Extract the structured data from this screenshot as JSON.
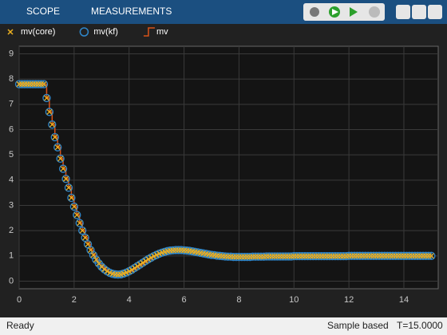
{
  "toolbar": {
    "tabs": [
      "SCOPE",
      "MEASUREMENTS"
    ]
  },
  "status": {
    "state": "Ready",
    "mode": "Sample based",
    "time": "T=15.0000"
  },
  "chart_data": {
    "type": "line",
    "x": [
      0,
      0.1,
      0.2,
      0.3,
      0.4,
      0.5,
      0.6,
      0.7,
      0.8,
      0.9,
      1,
      1.1,
      1.2,
      1.3,
      1.4,
      1.5,
      1.6,
      1.7,
      1.8,
      1.9,
      2,
      2.1,
      2.2,
      2.3,
      2.4,
      2.5,
      2.6,
      2.7,
      2.8,
      2.9,
      3,
      3.1,
      3.2,
      3.3,
      3.4,
      3.5,
      3.6,
      3.7,
      3.8,
      3.9,
      4,
      4.1,
      4.2,
      4.3,
      4.4,
      4.5,
      4.6,
      4.7,
      4.8,
      4.9,
      5,
      5.1,
      5.2,
      5.3,
      5.4,
      5.5,
      5.6,
      5.7,
      5.8,
      5.9,
      6,
      6.1,
      6.2,
      6.3,
      6.4,
      6.5,
      6.6,
      6.7,
      6.8,
      6.9,
      7,
      7.1,
      7.2,
      7.3,
      7.4,
      7.5,
      7.6,
      7.7,
      7.8,
      7.9,
      8,
      8.1,
      8.2,
      8.3,
      8.4,
      8.5,
      8.6,
      8.7,
      8.8,
      8.9,
      9,
      9.1,
      9.2,
      9.3,
      9.4,
      9.5,
      9.6,
      9.7,
      9.8,
      9.9,
      10,
      10.1,
      10.2,
      10.3,
      10.4,
      10.5,
      10.6,
      10.7,
      10.8,
      10.9,
      11,
      11.1,
      11.2,
      11.3,
      11.4,
      11.5,
      11.6,
      11.7,
      11.8,
      11.9,
      12,
      12.1,
      12.2,
      12.3,
      12.4,
      12.5,
      12.6,
      12.7,
      12.8,
      12.9,
      13,
      13.1,
      13.2,
      13.3,
      13.4,
      13.5,
      13.6,
      13.7,
      13.8,
      13.9,
      14,
      14.1,
      14.2,
      14.3,
      14.4,
      14.5,
      14.6,
      14.7,
      14.8,
      14.9,
      15
    ],
    "series": [
      {
        "name": "mv(core)",
        "color": "#edb120",
        "marker": "x",
        "values": [
          7.8,
          7.8,
          7.8,
          7.8,
          7.8,
          7.8,
          7.8,
          7.8,
          7.8,
          7.8,
          7.25,
          6.7,
          6.2,
          5.7,
          5.3,
          4.85,
          4.45,
          4.05,
          3.7,
          3.3,
          2.95,
          2.62,
          2.3,
          2.0,
          1.72,
          1.46,
          1.23,
          1.03,
          0.85,
          0.7,
          0.57,
          0.47,
          0.39,
          0.33,
          0.29,
          0.27,
          0.26,
          0.27,
          0.3,
          0.34,
          0.39,
          0.45,
          0.52,
          0.59,
          0.66,
          0.73,
          0.8,
          0.87,
          0.93,
          0.99,
          1.04,
          1.09,
          1.13,
          1.16,
          1.19,
          1.21,
          1.22,
          1.23,
          1.23,
          1.23,
          1.22,
          1.21,
          1.2,
          1.18,
          1.16,
          1.14,
          1.12,
          1.1,
          1.08,
          1.06,
          1.04,
          1.03,
          1.01,
          1.0,
          0.99,
          0.98,
          0.97,
          0.97,
          0.96,
          0.96,
          0.96,
          0.96,
          0.96,
          0.96,
          0.96,
          0.97,
          0.97,
          0.97,
          0.97,
          0.97,
          0.98,
          0.98,
          0.98,
          0.98,
          0.98,
          0.98,
          0.98,
          0.98,
          0.98,
          0.98,
          0.99,
          0.99,
          0.99,
          0.99,
          0.99,
          0.99,
          0.99,
          0.99,
          0.99,
          0.99,
          0.99,
          0.99,
          0.99,
          0.99,
          0.99,
          0.99,
          0.99,
          0.99,
          0.99,
          0.99,
          1,
          1,
          1,
          1,
          1,
          1,
          1,
          1,
          1,
          1,
          1,
          1,
          1,
          1,
          1,
          1,
          1,
          1,
          1,
          1,
          1,
          1,
          1,
          1,
          1,
          1,
          1,
          1,
          1,
          1,
          1
        ]
      },
      {
        "name": "mv(kf)",
        "color": "#2f86c9",
        "marker": "o",
        "values": [
          7.8,
          7.8,
          7.8,
          7.8,
          7.8,
          7.8,
          7.8,
          7.8,
          7.8,
          7.8,
          7.25,
          6.7,
          6.2,
          5.7,
          5.3,
          4.85,
          4.45,
          4.05,
          3.7,
          3.3,
          2.95,
          2.62,
          2.3,
          2.0,
          1.72,
          1.46,
          1.23,
          1.03,
          0.85,
          0.7,
          0.57,
          0.47,
          0.39,
          0.33,
          0.29,
          0.27,
          0.26,
          0.27,
          0.3,
          0.34,
          0.39,
          0.45,
          0.52,
          0.59,
          0.66,
          0.73,
          0.8,
          0.87,
          0.93,
          0.99,
          1.04,
          1.09,
          1.13,
          1.16,
          1.19,
          1.21,
          1.22,
          1.23,
          1.23,
          1.23,
          1.22,
          1.21,
          1.2,
          1.18,
          1.16,
          1.14,
          1.12,
          1.1,
          1.08,
          1.06,
          1.04,
          1.03,
          1.01,
          1.0,
          0.99,
          0.98,
          0.97,
          0.97,
          0.96,
          0.96,
          0.96,
          0.96,
          0.96,
          0.96,
          0.96,
          0.97,
          0.97,
          0.97,
          0.97,
          0.97,
          0.98,
          0.98,
          0.98,
          0.98,
          0.98,
          0.98,
          0.98,
          0.98,
          0.98,
          0.98,
          0.99,
          0.99,
          0.99,
          0.99,
          0.99,
          0.99,
          0.99,
          0.99,
          0.99,
          0.99,
          0.99,
          0.99,
          0.99,
          0.99,
          0.99,
          0.99,
          0.99,
          0.99,
          0.99,
          0.99,
          1,
          1,
          1,
          1,
          1,
          1,
          1,
          1,
          1,
          1,
          1,
          1,
          1,
          1,
          1,
          1,
          1,
          1,
          1,
          1,
          1,
          1,
          1,
          1,
          1,
          1,
          1,
          1,
          1,
          1,
          1
        ]
      },
      {
        "name": "mv",
        "color": "#d95319",
        "marker": "steps",
        "values": [
          7.8,
          7.8,
          7.8,
          7.8,
          7.8,
          7.8,
          7.8,
          7.8,
          7.8,
          7.8,
          7.25,
          6.7,
          6.2,
          5.7,
          5.3,
          4.85,
          4.45,
          4.05,
          3.7,
          3.3,
          2.95,
          2.62,
          2.3,
          2.0,
          1.72,
          1.46,
          1.23,
          1.03,
          0.85,
          0.7,
          0.57,
          0.47,
          0.39,
          0.33,
          0.29,
          0.27,
          0.26,
          0.27,
          0.3,
          0.34,
          0.39,
          0.45,
          0.52,
          0.59,
          0.66,
          0.73,
          0.8,
          0.87,
          0.93,
          0.99,
          1.04,
          1.09,
          1.13,
          1.16,
          1.19,
          1.21,
          1.22,
          1.23,
          1.23,
          1.23,
          1.22,
          1.21,
          1.2,
          1.18,
          1.16,
          1.14,
          1.12,
          1.1,
          1.08,
          1.06,
          1.04,
          1.03,
          1.01,
          1.0,
          0.99,
          0.98,
          0.97,
          0.97,
          0.96,
          0.96,
          0.96,
          0.96,
          0.96,
          0.96,
          0.96,
          0.97,
          0.97,
          0.97,
          0.97,
          0.97,
          0.98,
          0.98,
          0.98,
          0.98,
          0.98,
          0.98,
          0.98,
          0.98,
          0.98,
          0.98,
          0.99,
          0.99,
          0.99,
          0.99,
          0.99,
          0.99,
          0.99,
          0.99,
          0.99,
          0.99,
          0.99,
          0.99,
          0.99,
          0.99,
          0.99,
          0.99,
          0.99,
          0.99,
          0.99,
          0.99,
          1,
          1,
          1,
          1,
          1,
          1,
          1,
          1,
          1,
          1,
          1,
          1,
          1,
          1,
          1,
          1,
          1,
          1,
          1,
          1,
          1,
          1,
          1,
          1,
          1,
          1,
          1,
          1,
          1,
          1,
          1
        ]
      }
    ],
    "xlim": [
      0,
      15.25
    ],
    "ylim": [
      -0.3,
      9.3
    ],
    "xticks": [
      0,
      2,
      4,
      6,
      8,
      10,
      12,
      14
    ],
    "yticks": [
      0,
      1,
      2,
      3,
      4,
      5,
      6,
      7,
      8,
      9
    ],
    "grid": true
  }
}
